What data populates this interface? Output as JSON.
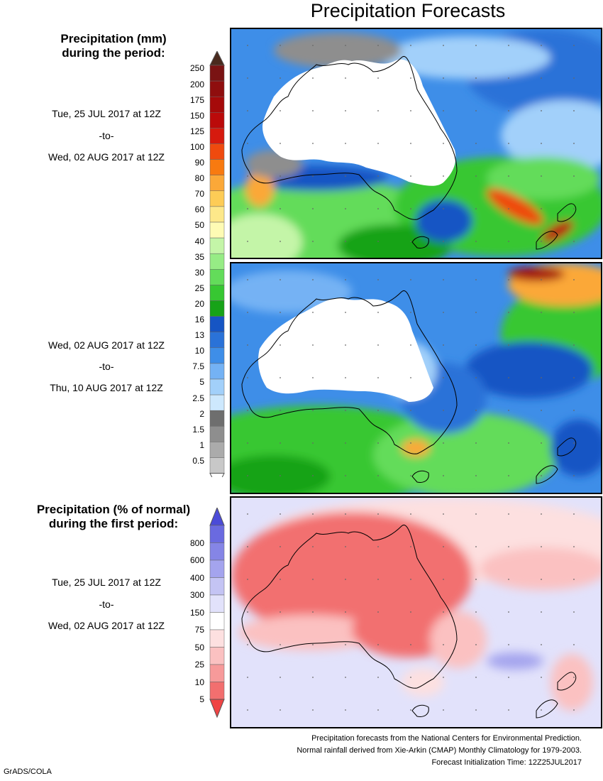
{
  "title": "Precipitation Forecasts",
  "legend1": {
    "heading": [
      "Precipitation (mm)",
      "during the period:"
    ],
    "period1": {
      "start": "Tue, 25 JUL 2017 at 12Z",
      "sep": "-to-",
      "end": "Wed, 02 AUG 2017 at 12Z"
    },
    "period2": {
      "start": "Wed, 02 AUG 2017 at 12Z",
      "sep": "-to-",
      "end": "Thu, 10 AUG 2017 at 12Z"
    },
    "scale": [
      {
        "label": "250",
        "color": "#7a1313"
      },
      {
        "label": "200",
        "color": "#8f0e0e"
      },
      {
        "label": "175",
        "color": "#a50a0a"
      },
      {
        "label": "150",
        "color": "#bb0a0a"
      },
      {
        "label": "125",
        "color": "#d61a0e"
      },
      {
        "label": "100",
        "color": "#ef4a0e"
      },
      {
        "label": "90",
        "color": "#f87a10"
      },
      {
        "label": "80",
        "color": "#fba838"
      },
      {
        "label": "70",
        "color": "#fdcc56"
      },
      {
        "label": "60",
        "color": "#fde88a"
      },
      {
        "label": "50",
        "color": "#fefbb4"
      },
      {
        "label": "40",
        "color": "#c4f5a8"
      },
      {
        "label": "35",
        "color": "#96ec85"
      },
      {
        "label": "30",
        "color": "#63dc5a"
      },
      {
        "label": "25",
        "color": "#37c732"
      },
      {
        "label": "20",
        "color": "#17a318"
      },
      {
        "label": "16",
        "color": "#1655c4"
      },
      {
        "label": "13",
        "color": "#2a72d8"
      },
      {
        "label": "10",
        "color": "#3e8ee8"
      },
      {
        "label": "7.5",
        "color": "#74b2f4"
      },
      {
        "label": "5",
        "color": "#a2d0fa"
      },
      {
        "label": "2.5",
        "color": "#cde8fd"
      },
      {
        "label": "2",
        "color": "#6e6e6e"
      },
      {
        "label": "1.5",
        "color": "#8e8e8e"
      },
      {
        "label": "1",
        "color": "#ababab"
      },
      {
        "label": "0.5",
        "color": "#c8c8c8"
      }
    ],
    "top_arrow_color": "#4a2a1e"
  },
  "legend2": {
    "heading": [
      "Precipitation (% of normal)",
      "during the first period:"
    ],
    "period": {
      "start": "Tue, 25 JUL 2017 at 12Z",
      "sep": "-to-",
      "end": "Wed, 02 AUG 2017 at 12Z"
    },
    "scale": [
      {
        "label": "800",
        "color": "#6a6ae0"
      },
      {
        "label": "600",
        "color": "#8585e6"
      },
      {
        "label": "400",
        "color": "#a4a4ee"
      },
      {
        "label": "300",
        "color": "#c4c4f4"
      },
      {
        "label": "150",
        "color": "#e2e2fb"
      },
      {
        "label": "75",
        "color": "#ffffff"
      },
      {
        "label": "50",
        "color": "#fde0e0"
      },
      {
        "label": "25",
        "color": "#fbc1c1"
      },
      {
        "label": "10",
        "color": "#f79a9a"
      },
      {
        "label": "5",
        "color": "#f26f6f"
      }
    ],
    "top_arrow_color": "#4b4bd8",
    "bottom_arrow_color": "#ef4444"
  },
  "footer": [
    "Precipitation forecasts from the National Centers for Environmental Prediction.",
    "Normal rainfall derived from Xie-Arkin (CMAP) Monthly Climatology for 1979-2003.",
    "Forecast Initialization Time: 12Z25JUL2017"
  ],
  "credit": "GrADS/COLA"
}
